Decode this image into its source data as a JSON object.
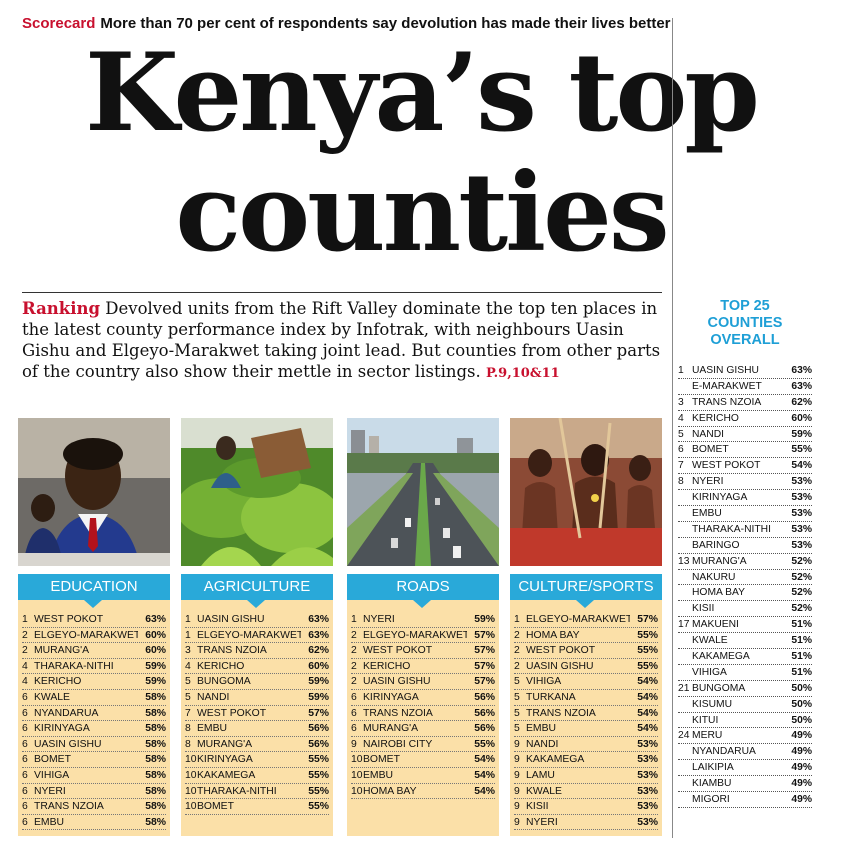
{
  "kicker": {
    "tag": "Scorecard",
    "text": "More than 70 per cent of respondents say devolution has made their lives better"
  },
  "headline": {
    "line1": "Kenya’s top",
    "line2": "counties"
  },
  "intro": {
    "tag": "Ranking",
    "text": " Devolved units from the Rift Valley dominate the top ten places in the latest county performance index by Infotrak, with neighbours Uasin Gishu and Elgeyo-Marakwet taking joint lead. But counties from other parts of the country also show their mettle in sector listings. ",
    "pages": "P.9,10&11"
  },
  "categories": [
    {
      "title": "EDUCATION",
      "rows": [
        {
          "rank": "1",
          "name": "WEST POKOT",
          "pct": "63%"
        },
        {
          "rank": "2",
          "name": "ELGEYO-MARAKWET",
          "pct": "60%"
        },
        {
          "rank": "2",
          "name": "MURANG'A",
          "pct": "60%"
        },
        {
          "rank": "4",
          "name": "THARAKA-NITHI",
          "pct": "59%"
        },
        {
          "rank": "4",
          "name": "KERICHO",
          "pct": "59%"
        },
        {
          "rank": "6",
          "name": "KWALE",
          "pct": "58%"
        },
        {
          "rank": "6",
          "name": "NYANDARUA",
          "pct": "58%"
        },
        {
          "rank": "6",
          "name": "KIRINYAGA",
          "pct": "58%"
        },
        {
          "rank": "6",
          "name": "UASIN GISHU",
          "pct": "58%"
        },
        {
          "rank": "6",
          "name": "BOMET",
          "pct": "58%"
        },
        {
          "rank": "6",
          "name": "VIHIGA",
          "pct": "58%"
        },
        {
          "rank": "6",
          "name": "NYERI",
          "pct": "58%"
        },
        {
          "rank": "6",
          "name": "TRANS NZOIA",
          "pct": "58%"
        },
        {
          "rank": "6",
          "name": "EMBU",
          "pct": "58%"
        }
      ]
    },
    {
      "title": "AGRICULTURE",
      "rows": [
        {
          "rank": "1",
          "name": "UASIN GISHU",
          "pct": "63%"
        },
        {
          "rank": "1",
          "name": "ELGEYO-MARAKWET",
          "pct": "63%"
        },
        {
          "rank": "3",
          "name": "TRANS NZOIA",
          "pct": "62%"
        },
        {
          "rank": "4",
          "name": "KERICHO",
          "pct": "60%"
        },
        {
          "rank": "5",
          "name": "BUNGOMA",
          "pct": "59%"
        },
        {
          "rank": "5",
          "name": "NANDI",
          "pct": "59%"
        },
        {
          "rank": "7",
          "name": "WEST POKOT",
          "pct": "57%"
        },
        {
          "rank": "8",
          "name": "EMBU",
          "pct": "56%"
        },
        {
          "rank": "8",
          "name": "MURANG'A",
          "pct": "56%"
        },
        {
          "rank": "10",
          "name": "KIRINYAGA",
          "pct": "55%"
        },
        {
          "rank": "10",
          "name": "KAKAMEGA",
          "pct": "55%"
        },
        {
          "rank": "10",
          "name": "THARAKA-NITHI",
          "pct": "55%"
        },
        {
          "rank": "10",
          "name": "BOMET",
          "pct": "55%"
        }
      ]
    },
    {
      "title": "ROADS",
      "rows": [
        {
          "rank": "1",
          "name": "NYERI",
          "pct": "59%"
        },
        {
          "rank": "2",
          "name": "ELGEYO-MARAKWET",
          "pct": "57%"
        },
        {
          "rank": "2",
          "name": "WEST POKOT",
          "pct": "57%"
        },
        {
          "rank": "2",
          "name": "KERICHO",
          "pct": "57%"
        },
        {
          "rank": "2",
          "name": "UASIN GISHU",
          "pct": "57%"
        },
        {
          "rank": "6",
          "name": "KIRINYAGA",
          "pct": "56%"
        },
        {
          "rank": "6",
          "name": "TRANS NZOIA",
          "pct": "56%"
        },
        {
          "rank": "6",
          "name": "MURANG'A",
          "pct": "56%"
        },
        {
          "rank": "9",
          "name": "NAIROBI CITY",
          "pct": "55%"
        },
        {
          "rank": "10",
          "name": "BOMET",
          "pct": "54%"
        },
        {
          "rank": "10",
          "name": "EMBU",
          "pct": "54%"
        },
        {
          "rank": "10",
          "name": "HOMA BAY",
          "pct": "54%"
        }
      ]
    },
    {
      "title": "CULTURE/SPORTS",
      "rows": [
        {
          "rank": "1",
          "name": "ELGEYO-MARAKWET",
          "pct": "57%"
        },
        {
          "rank": "2",
          "name": "HOMA BAY",
          "pct": "55%"
        },
        {
          "rank": "2",
          "name": "WEST POKOT",
          "pct": "55%"
        },
        {
          "rank": "2",
          "name": "UASIN GISHU",
          "pct": "55%"
        },
        {
          "rank": "5",
          "name": "VIHIGA",
          "pct": "54%"
        },
        {
          "rank": "5",
          "name": "TURKANA",
          "pct": "54%"
        },
        {
          "rank": "5",
          "name": "TRANS NZOIA",
          "pct": "54%"
        },
        {
          "rank": "5",
          "name": "EMBU",
          "pct": "54%"
        },
        {
          "rank": "9",
          "name": "NANDI",
          "pct": "53%"
        },
        {
          "rank": "9",
          "name": "KAKAMEGA",
          "pct": "53%"
        },
        {
          "rank": "9",
          "name": "LAMU",
          "pct": "53%"
        },
        {
          "rank": "9",
          "name": "KWALE",
          "pct": "53%"
        },
        {
          "rank": "9",
          "name": "KISII",
          "pct": "53%"
        },
        {
          "rank": "9",
          "name": "NYERI",
          "pct": "53%"
        }
      ]
    }
  ],
  "top25": {
    "title_l1": "TOP 25",
    "title_l2": "COUNTIES",
    "title_l3": "OVERALL",
    "rows": [
      {
        "rank": "1",
        "name": "UASIN GISHU",
        "pct": "63%"
      },
      {
        "rank": "",
        "name": "E-MARAKWET",
        "pct": "63%"
      },
      {
        "rank": "3",
        "name": "TRANS NZOIA",
        "pct": "62%"
      },
      {
        "rank": "4",
        "name": "KERICHO",
        "pct": "60%"
      },
      {
        "rank": "5",
        "name": "NANDI",
        "pct": "59%"
      },
      {
        "rank": "6",
        "name": "BOMET",
        "pct": "55%"
      },
      {
        "rank": "7",
        "name": "WEST POKOT",
        "pct": "54%"
      },
      {
        "rank": "8",
        "name": "NYERI",
        "pct": "53%"
      },
      {
        "rank": "",
        "name": "KIRINYAGA",
        "pct": "53%"
      },
      {
        "rank": "",
        "name": "EMBU",
        "pct": "53%"
      },
      {
        "rank": "",
        "name": "THARAKA-NITHI",
        "pct": "53%"
      },
      {
        "rank": "",
        "name": "BARINGO",
        "pct": "53%"
      },
      {
        "rank": "13",
        "name": "MURANG'A",
        "pct": "52%"
      },
      {
        "rank": "",
        "name": "NAKURU",
        "pct": "52%"
      },
      {
        "rank": "",
        "name": "HOMA BAY",
        "pct": "52%"
      },
      {
        "rank": "",
        "name": "KISII",
        "pct": "52%"
      },
      {
        "rank": "17",
        "name": "MAKUENI",
        "pct": "51%"
      },
      {
        "rank": "",
        "name": "KWALE",
        "pct": "51%"
      },
      {
        "rank": "",
        "name": "KAKAMEGA",
        "pct": "51%"
      },
      {
        "rank": "",
        "name": "VIHIGA",
        "pct": "51%"
      },
      {
        "rank": "21",
        "name": "BUNGOMA",
        "pct": "50%"
      },
      {
        "rank": "",
        "name": "KISUMU",
        "pct": "50%"
      },
      {
        "rank": "",
        "name": "KITUI",
        "pct": "50%"
      },
      {
        "rank": "24",
        "name": "MERU",
        "pct": "49%"
      },
      {
        "rank": "",
        "name": "NYANDARUA",
        "pct": "49%"
      },
      {
        "rank": "",
        "name": "LAIKIPIA",
        "pct": "49%"
      },
      {
        "rank": "",
        "name": "KIAMBU",
        "pct": "49%"
      },
      {
        "rank": "",
        "name": "MIGORI",
        "pct": "49%"
      }
    ]
  },
  "colors": {
    "accent_red": "#c8102e",
    "category_blue": "#29a9d9",
    "list_bg": "#fbe0a8",
    "top25_blue": "#1e9fd6"
  }
}
